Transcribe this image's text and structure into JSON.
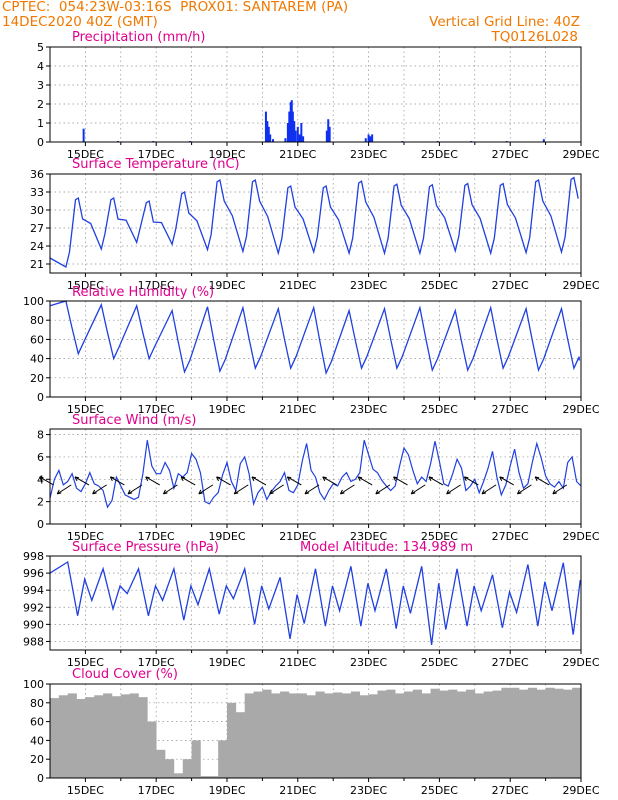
{
  "header": {
    "line1_left": "CPTEC:  054:23W-03:16S  PROX01: SANTAREM (PA)",
    "line2_left": "14DEC2020 40Z (GMT)",
    "line2_right": "Vertical Grid Line: 40Z",
    "line3_right": "TQ0126L028",
    "text_color": "#f07800"
  },
  "colors": {
    "line": "#2040e0",
    "bar": "#1030f0",
    "cloud": "#a9a9a9",
    "title": "#e0008c"
  },
  "chart_data": [
    {
      "type": "bar",
      "title": "Precipitation (mm/h)",
      "x_ticks": [
        "15DEC",
        "17DEC",
        "19DEC",
        "21DEC",
        "23DEC",
        "25DEC",
        "27DEC",
        "29DEC"
      ],
      "ylim": [
        0,
        5
      ],
      "y_ticks": [
        "0",
        "1",
        "2",
        "3",
        "4",
        "5"
      ],
      "bars": [
        {
          "day": 14.95,
          "v": 0.7
        },
        {
          "day": 15.92,
          "v": 0.05
        },
        {
          "day": 16.92,
          "v": 0.05
        },
        {
          "day": 17.96,
          "v": 0.05
        },
        {
          "day": 20.1,
          "v": 1.6
        },
        {
          "day": 20.14,
          "v": 1.1
        },
        {
          "day": 20.18,
          "v": 0.8
        },
        {
          "day": 20.22,
          "v": 0.4
        },
        {
          "day": 20.3,
          "v": 0.15
        },
        {
          "day": 20.65,
          "v": 0.2
        },
        {
          "day": 20.72,
          "v": 1.0
        },
        {
          "day": 20.76,
          "v": 1.6
        },
        {
          "day": 20.8,
          "v": 2.1
        },
        {
          "day": 20.83,
          "v": 2.2
        },
        {
          "day": 20.86,
          "v": 1.6
        },
        {
          "day": 20.9,
          "v": 1.1
        },
        {
          "day": 20.94,
          "v": 0.6
        },
        {
          "day": 21.0,
          "v": 0.8
        },
        {
          "day": 21.05,
          "v": 0.4
        },
        {
          "day": 21.1,
          "v": 1.0
        },
        {
          "day": 21.15,
          "v": 0.3
        },
        {
          "day": 21.82,
          "v": 0.6
        },
        {
          "day": 21.86,
          "v": 1.2
        },
        {
          "day": 21.9,
          "v": 0.8
        },
        {
          "day": 22.92,
          "v": 0.2
        },
        {
          "day": 23.0,
          "v": 0.4
        },
        {
          "day": 23.05,
          "v": 0.3
        },
        {
          "day": 23.1,
          "v": 0.4
        },
        {
          "day": 23.95,
          "v": 0.05
        },
        {
          "day": 24.95,
          "v": 0.05
        },
        {
          "day": 25.9,
          "v": 0.05
        },
        {
          "day": 26.9,
          "v": 0.05
        },
        {
          "day": 27.95,
          "v": 0.15
        }
      ]
    },
    {
      "type": "line",
      "title": "Surface Temperature (nC)",
      "x_ticks": [
        "15DEC",
        "17DEC",
        "19DEC",
        "21DEC",
        "23DEC",
        "25DEC",
        "27DEC",
        "29DEC"
      ],
      "ylim": [
        19.5,
        36
      ],
      "y_ticks": [
        "21",
        "24",
        "27",
        "30",
        "33",
        "36"
      ],
      "min_values": [
        20.5,
        23.5,
        24.6,
        24.3,
        23.4,
        23.1,
        22.8,
        23.0,
        22.8,
        22.8,
        22.8,
        23.2,
        22.8,
        22.9,
        23.0
      ],
      "max_values": [
        32.0,
        32.0,
        31.5,
        33.0,
        35.0,
        35.0,
        34.0,
        34.0,
        34.8,
        34.3,
        34.2,
        34.4,
        34.4,
        35.0,
        35.4
      ]
    },
    {
      "type": "line",
      "title": "Relative Humidity (%)",
      "x_ticks": [
        "15DEC",
        "17DEC",
        "19DEC",
        "21DEC",
        "23DEC",
        "25DEC",
        "27DEC",
        "29DEC"
      ],
      "ylim": [
        0,
        100
      ],
      "y_ticks": [
        "0",
        "20",
        "40",
        "60",
        "80",
        "100"
      ],
      "min_values": [
        40,
        45,
        40,
        40,
        26,
        27,
        30,
        30,
        25,
        30,
        30,
        28,
        28,
        30,
        28,
        30
      ],
      "max_values": [
        100,
        96,
        95,
        90,
        94,
        93,
        92,
        93,
        90,
        92,
        93,
        90,
        93,
        92,
        92,
        92
      ]
    },
    {
      "type": "line",
      "title": "Surface Wind (m/s)",
      "x_ticks": [
        "15DEC",
        "17DEC",
        "19DEC",
        "21DEC",
        "23DEC",
        "25DEC",
        "27DEC",
        "29DEC"
      ],
      "ylim": [
        0,
        8.5
      ],
      "y_ticks": [
        "0",
        "2",
        "4",
        "6",
        "8"
      ],
      "values": [
        2.3,
        4.0,
        4.8,
        3.5,
        3.8,
        4.5,
        3.2,
        2.9,
        3.6,
        4.6,
        3.6,
        3.4,
        3.0,
        1.5,
        2.1,
        4.2,
        3.4,
        2.6,
        2.4,
        2.2,
        2.4,
        4.5,
        7.5,
        5.2,
        4.5,
        4.5,
        5.5,
        4.8,
        3.2,
        4.5,
        4.2,
        4.6,
        6.3,
        5.8,
        4.6,
        2.0,
        1.8,
        2.4,
        2.8,
        4.4,
        5.5,
        3.8,
        3.0,
        5.4,
        6.0,
        4.5,
        1.8,
        2.8,
        3.3,
        2.2,
        2.9,
        3.4,
        3.8,
        4.6,
        3.0,
        2.8,
        3.5,
        5.6,
        7.2,
        4.8,
        4.2,
        2.8,
        2.2,
        3.0,
        3.6,
        3.4,
        4.2,
        4.6,
        3.8,
        4.0,
        4.6,
        7.5,
        6.2,
        4.9,
        4.6,
        3.9,
        3.4,
        3.0,
        3.4,
        5.2,
        6.8,
        6.2,
        4.8,
        3.6,
        4.2,
        3.8,
        5.4,
        7.4,
        5.6,
        3.6,
        3.4,
        4.5,
        5.8,
        5.0,
        3.0,
        3.4,
        4.0,
        2.8,
        3.8,
        5.0,
        6.5,
        4.2,
        2.6,
        3.5,
        5.2,
        6.7,
        4.6,
        3.2,
        3.6,
        5.5,
        7.2,
        5.9,
        4.3,
        3.6,
        3.3,
        3.8,
        3.2,
        5.5,
        6.0,
        3.8,
        3.4
      ]
    },
    {
      "type": "line",
      "title": "Surface Pressure (hPa)",
      "annotation": "Model Altitude: 134.989  m",
      "x_ticks": [
        "15DEC",
        "17DEC",
        "19DEC",
        "21DEC",
        "23DEC",
        "25DEC",
        "27DEC",
        "29DEC"
      ],
      "ylim": [
        987,
        998
      ],
      "y_ticks": [
        "988",
        "990",
        "992",
        "994",
        "996",
        "998"
      ],
      "peaks": [
        997.3,
        996.5,
        996.5,
        996.5,
        996.5,
        996.5,
        995.5,
        996.5,
        996.8,
        996.5,
        996.8,
        996.5,
        995.8,
        997.0,
        997.2
      ],
      "troughs": [
        991.0,
        991.8,
        991.0,
        990.5,
        991.2,
        990.0,
        988.3,
        989.8,
        989.8,
        989.5,
        987.6,
        989.8,
        989.6,
        989.8,
        988.8
      ]
    },
    {
      "type": "bar",
      "title": "Cloud Cover (%)",
      "x_ticks": [
        "15DEC",
        "17DEC",
        "19DEC",
        "21DEC",
        "23DEC",
        "25DEC",
        "27DEC",
        "29DEC"
      ],
      "ylim": [
        0,
        100
      ],
      "y_ticks": [
        "0",
        "20",
        "40",
        "60",
        "80",
        "100"
      ],
      "values_by_6h": [
        85,
        88,
        90,
        84,
        86,
        88,
        90,
        87,
        89,
        90,
        86,
        60,
        30,
        20,
        5,
        20,
        40,
        2,
        2,
        40,
        80,
        70,
        90,
        92,
        94,
        90,
        92,
        90,
        90,
        88,
        92,
        90,
        91,
        90,
        92,
        88,
        89,
        93,
        94,
        90,
        92,
        94,
        90,
        95,
        93,
        94,
        92,
        94,
        90,
        92,
        93,
        96,
        96,
        94,
        96,
        94,
        96,
        95,
        94,
        96
      ]
    }
  ]
}
